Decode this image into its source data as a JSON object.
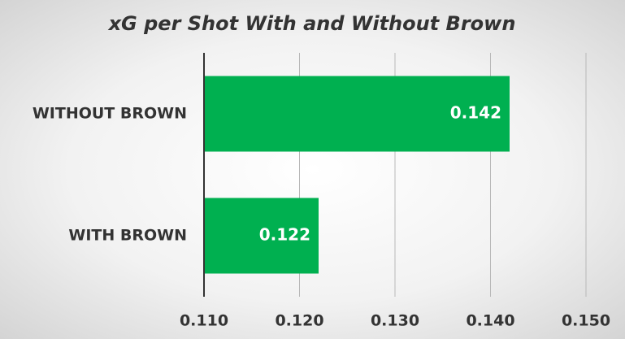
{
  "chart_data": {
    "type": "bar",
    "title": "xG per Shot With and Without Brown",
    "categories": [
      "WITHOUT BROWN",
      "WITH BROWN"
    ],
    "values": [
      0.142,
      0.122
    ],
    "color": "#00b050",
    "xlim": [
      0.11,
      0.15
    ],
    "xticks": [
      {
        "value": 0.11,
        "label": "0.110"
      },
      {
        "value": 0.12,
        "label": "0.120"
      },
      {
        "value": 0.13,
        "label": "0.130"
      },
      {
        "value": 0.14,
        "label": "0.140"
      },
      {
        "value": 0.15,
        "label": "0.150"
      }
    ],
    "grid": true
  }
}
